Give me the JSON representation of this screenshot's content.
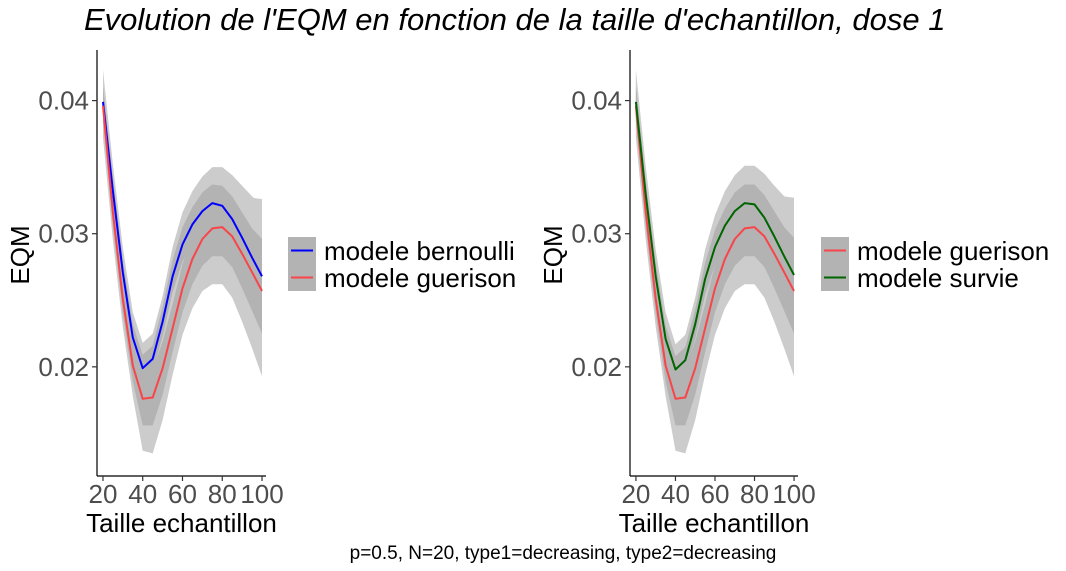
{
  "title": "Evolution de l'EQM en fonction de la taille d'echantillon, dose  1",
  "caption": "p=0.5, N=20, type1=decreasing, type2=decreasing",
  "colors": {
    "ribbon_outer": "#cccccc",
    "ribbon_inner": "#b3b3b3",
    "legend_key_bg": "#b3b3b3",
    "bernoulli": "#0000ff",
    "guerison": "#f8454a",
    "survie": "#006400",
    "tick_text": "#4d4d4d"
  },
  "chart_data": [
    {
      "type": "line",
      "title": "",
      "xlabel": "Taille echantillon",
      "ylabel": "EQM",
      "xlim": [
        17,
        102
      ],
      "ylim": [
        0.0118,
        0.0438
      ],
      "x_ticks": [
        20,
        40,
        60,
        80,
        100
      ],
      "x_tick_labels": [
        "20",
        "40",
        "60",
        "80",
        "100"
      ],
      "y_ticks": [
        0.02,
        0.03,
        0.04
      ],
      "y_tick_labels": [
        "0.02",
        "0.03",
        "0.04"
      ],
      "grid": false,
      "legend_position": "right",
      "x": [
        20,
        25,
        30,
        35,
        40,
        45,
        50,
        55,
        60,
        65,
        70,
        75,
        80,
        85,
        90,
        95,
        100
      ],
      "series": [
        {
          "name": "modele bernoulli",
          "color": "#0000ff",
          "values": [
            0.0399,
            0.0332,
            0.0271,
            0.0222,
            0.0199,
            0.0206,
            0.0234,
            0.0268,
            0.0292,
            0.0307,
            0.0317,
            0.0323,
            0.0321,
            0.0311,
            0.0297,
            0.0282,
            0.0268
          ],
          "band_outer": [
            [
              0.0378,
              0.0423
            ],
            [
              0.0313,
              0.0352
            ],
            [
              0.0252,
              0.029
            ],
            [
              0.0203,
              0.0241
            ],
            [
              0.018,
              0.0218
            ],
            [
              0.0187,
              0.0225
            ],
            [
              0.0213,
              0.0253
            ],
            [
              0.0245,
              0.029
            ],
            [
              0.0267,
              0.0316
            ],
            [
              0.0281,
              0.0332
            ],
            [
              0.029,
              0.0343
            ],
            [
              0.0295,
              0.035
            ],
            [
              0.0292,
              0.035
            ],
            [
              0.0278,
              0.0344
            ],
            [
              0.0259,
              0.0334
            ],
            [
              0.0237,
              0.0327
            ],
            [
              0.021,
              0.0326
            ]
          ],
          "band_inner": [
            [
              0.0387,
              0.0411
            ],
            [
              0.0322,
              0.0342
            ],
            [
              0.0261,
              0.0281
            ],
            [
              0.0212,
              0.0232
            ],
            [
              0.0189,
              0.0209
            ],
            [
              0.0196,
              0.0216
            ],
            [
              0.0223,
              0.0245
            ],
            [
              0.0256,
              0.028
            ],
            [
              0.0279,
              0.0305
            ],
            [
              0.0294,
              0.032
            ],
            [
              0.0303,
              0.0331
            ],
            [
              0.0309,
              0.0337
            ],
            [
              0.0306,
              0.0336
            ],
            [
              0.0294,
              0.0328
            ],
            [
              0.0278,
              0.0316
            ],
            [
              0.026,
              0.0304
            ],
            [
              0.024,
              0.0296
            ]
          ]
        },
        {
          "name": "modele guerison",
          "color": "#f8454a",
          "values": [
            0.0396,
            0.0316,
            0.0251,
            0.0201,
            0.0176,
            0.0177,
            0.0199,
            0.0229,
            0.0259,
            0.0281,
            0.0296,
            0.0304,
            0.0305,
            0.0298,
            0.0285,
            0.0271,
            0.0257
          ],
          "band_outer": [
            [
              0.0372,
              0.042
            ],
            [
              0.0295,
              0.0337
            ],
            [
              0.023,
              0.0272
            ],
            [
              0.0178,
              0.0224
            ],
            [
              0.0137,
              0.0215
            ],
            [
              0.0135,
              0.0219
            ],
            [
              0.016,
              0.0238
            ],
            [
              0.0194,
              0.0264
            ],
            [
              0.0224,
              0.0294
            ],
            [
              0.0244,
              0.0318
            ],
            [
              0.0257,
              0.0335
            ],
            [
              0.0262,
              0.0346
            ],
            [
              0.0262,
              0.0348
            ],
            [
              0.0252,
              0.0344
            ],
            [
              0.0234,
              0.0336
            ],
            [
              0.0214,
              0.0328
            ],
            [
              0.0193,
              0.0321
            ]
          ],
          "band_inner": [
            [
              0.0384,
              0.0408
            ],
            [
              0.0305,
              0.0327
            ],
            [
              0.024,
              0.0262
            ],
            [
              0.0189,
              0.0213
            ],
            [
              0.0156,
              0.0196
            ],
            [
              0.0156,
              0.0198
            ],
            [
              0.0179,
              0.0219
            ],
            [
              0.0211,
              0.0247
            ],
            [
              0.0241,
              0.0277
            ],
            [
              0.0262,
              0.03
            ],
            [
              0.0276,
              0.0316
            ],
            [
              0.0283,
              0.0325
            ],
            [
              0.0283,
              0.0327
            ],
            [
              0.0275,
              0.0321
            ],
            [
              0.0259,
              0.0311
            ],
            [
              0.0242,
              0.03
            ],
            [
              0.0225,
              0.0289
            ]
          ]
        }
      ]
    },
    {
      "type": "line",
      "title": "",
      "xlabel": "Taille echantillon",
      "ylabel": "EQM",
      "xlim": [
        17,
        102
      ],
      "ylim": [
        0.0118,
        0.0438
      ],
      "x_ticks": [
        20,
        40,
        60,
        80,
        100
      ],
      "x_tick_labels": [
        "20",
        "40",
        "60",
        "80",
        "100"
      ],
      "y_ticks": [
        0.02,
        0.03,
        0.04
      ],
      "y_tick_labels": [
        "0.02",
        "0.03",
        "0.04"
      ],
      "grid": false,
      "legend_position": "right",
      "x": [
        20,
        25,
        30,
        35,
        40,
        45,
        50,
        55,
        60,
        65,
        70,
        75,
        80,
        85,
        90,
        95,
        100
      ],
      "series": [
        {
          "name": "modele guerison",
          "color": "#f8454a",
          "values": [
            0.0396,
            0.0316,
            0.0251,
            0.0201,
            0.0176,
            0.0177,
            0.0199,
            0.0229,
            0.0259,
            0.0281,
            0.0296,
            0.0304,
            0.0305,
            0.0298,
            0.0285,
            0.0271,
            0.0257
          ],
          "band_outer": [
            [
              0.0372,
              0.042
            ],
            [
              0.0295,
              0.0337
            ],
            [
              0.023,
              0.0272
            ],
            [
              0.0178,
              0.0224
            ],
            [
              0.0137,
              0.0215
            ],
            [
              0.0135,
              0.0219
            ],
            [
              0.016,
              0.0238
            ],
            [
              0.0194,
              0.0264
            ],
            [
              0.0224,
              0.0294
            ],
            [
              0.0244,
              0.0318
            ],
            [
              0.0257,
              0.0335
            ],
            [
              0.0262,
              0.0346
            ],
            [
              0.0262,
              0.0348
            ],
            [
              0.0252,
              0.0344
            ],
            [
              0.0234,
              0.0336
            ],
            [
              0.0214,
              0.0328
            ],
            [
              0.0193,
              0.0321
            ]
          ],
          "band_inner": [
            [
              0.0384,
              0.0408
            ],
            [
              0.0305,
              0.0327
            ],
            [
              0.024,
              0.0262
            ],
            [
              0.0189,
              0.0213
            ],
            [
              0.0156,
              0.0196
            ],
            [
              0.0156,
              0.0198
            ],
            [
              0.0179,
              0.0219
            ],
            [
              0.0211,
              0.0247
            ],
            [
              0.0241,
              0.0277
            ],
            [
              0.0262,
              0.03
            ],
            [
              0.0276,
              0.0316
            ],
            [
              0.0283,
              0.0325
            ],
            [
              0.0283,
              0.0327
            ],
            [
              0.0275,
              0.0321
            ],
            [
              0.0259,
              0.0311
            ],
            [
              0.0242,
              0.03
            ],
            [
              0.0225,
              0.0289
            ]
          ]
        },
        {
          "name": "modele survie",
          "color": "#006400",
          "values": [
            0.0399,
            0.0329,
            0.0268,
            0.0221,
            0.0198,
            0.0205,
            0.0232,
            0.0266,
            0.029,
            0.0306,
            0.0317,
            0.0323,
            0.0322,
            0.0312,
            0.0298,
            0.0283,
            0.0269
          ],
          "band_outer": [
            [
              0.0378,
              0.0423
            ],
            [
              0.031,
              0.035
            ],
            [
              0.0249,
              0.0288
            ],
            [
              0.0202,
              0.0241
            ],
            [
              0.0179,
              0.0217
            ],
            [
              0.0186,
              0.0224
            ],
            [
              0.0212,
              0.0252
            ],
            [
              0.0244,
              0.0288
            ],
            [
              0.0266,
              0.0314
            ],
            [
              0.028,
              0.0332
            ],
            [
              0.029,
              0.0344
            ],
            [
              0.0295,
              0.0351
            ],
            [
              0.0293,
              0.0351
            ],
            [
              0.0279,
              0.0345
            ],
            [
              0.026,
              0.0336
            ],
            [
              0.0238,
              0.0328
            ],
            [
              0.0211,
              0.0327
            ]
          ],
          "band_inner": [
            [
              0.0387,
              0.0411
            ],
            [
              0.0319,
              0.0339
            ],
            [
              0.0258,
              0.0278
            ],
            [
              0.0211,
              0.0231
            ],
            [
              0.0188,
              0.0208
            ],
            [
              0.0195,
              0.0215
            ],
            [
              0.0221,
              0.0243
            ],
            [
              0.0254,
              0.0278
            ],
            [
              0.0277,
              0.0303
            ],
            [
              0.0293,
              0.0319
            ],
            [
              0.0303,
              0.0331
            ],
            [
              0.0309,
              0.0337
            ],
            [
              0.0307,
              0.0337
            ],
            [
              0.0295,
              0.0329
            ],
            [
              0.0279,
              0.0317
            ],
            [
              0.0261,
              0.0305
            ],
            [
              0.0241,
              0.0297
            ]
          ]
        }
      ]
    }
  ]
}
